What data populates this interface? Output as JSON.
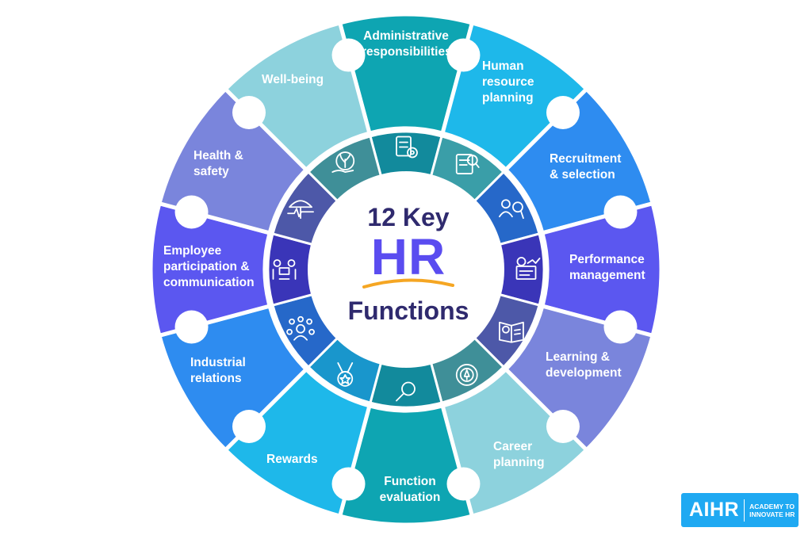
{
  "title": {
    "line1": "12 Key",
    "line2": "HR",
    "line3": "Functions"
  },
  "segments": [
    {
      "label": [
        "Administrative",
        "responsibilities"
      ],
      "icon": "document-gear-icon",
      "color": "#0ea5b2",
      "inner_color": "#128a9c"
    },
    {
      "label": [
        "Human",
        "resource",
        "planning"
      ],
      "icon": "document-search-icon",
      "color": "#1eb8ea",
      "inner_color": "#3a9ea8"
    },
    {
      "label": [
        "Recruitment",
        "& selection"
      ],
      "icon": "candidates-search-icon",
      "color": "#2e8cf0",
      "inner_color": "#2668c9"
    },
    {
      "label": [
        "Performance",
        "management"
      ],
      "icon": "performance-chart-icon",
      "color": "#5b57f0",
      "inner_color": "#3a35b8"
    },
    {
      "label": [
        "Learning &",
        "development"
      ],
      "icon": "book-idea-icon",
      "color": "#7a85dc",
      "inner_color": "#4d58a8"
    },
    {
      "label": [
        "Career",
        "planning"
      ],
      "icon": "rocket-gear-icon",
      "color": "#8dd2dd",
      "inner_color": "#3f8f98"
    },
    {
      "label": [
        "Function",
        "evaluation"
      ],
      "icon": "magnifier-icon",
      "color": "#0ea5b2",
      "inner_color": "#128a9c"
    },
    {
      "label": [
        "Rewards"
      ],
      "icon": "medal-icon",
      "color": "#1eb8ea",
      "inner_color": "#1996cc"
    },
    {
      "label": [
        "Industrial",
        "relations"
      ],
      "icon": "people-network-icon",
      "color": "#2e8cf0",
      "inner_color": "#2668c9"
    },
    {
      "label": [
        "Employee",
        "participation &",
        "communication"
      ],
      "icon": "meeting-icon",
      "color": "#5b57f0",
      "inner_color": "#3a35b8"
    },
    {
      "label": [
        "Health &",
        "safety"
      ],
      "icon": "umbrella-heartbeat-icon",
      "color": "#7a85dc",
      "inner_color": "#4d58a8"
    },
    {
      "label": [
        "Well-being"
      ],
      "icon": "hand-plant-icon",
      "color": "#8dd2dd",
      "inner_color": "#3f8f98"
    }
  ],
  "logo": {
    "main": "AIHR",
    "sub_line1": "ACADEMY TO",
    "sub_line2": "INNOVATE HR"
  },
  "colors": {
    "title_dark": "#2f2a6e",
    "title_accent": "#5a4cf0",
    "underline": "#f5a623",
    "logo_bg": "#1fa9f2"
  }
}
